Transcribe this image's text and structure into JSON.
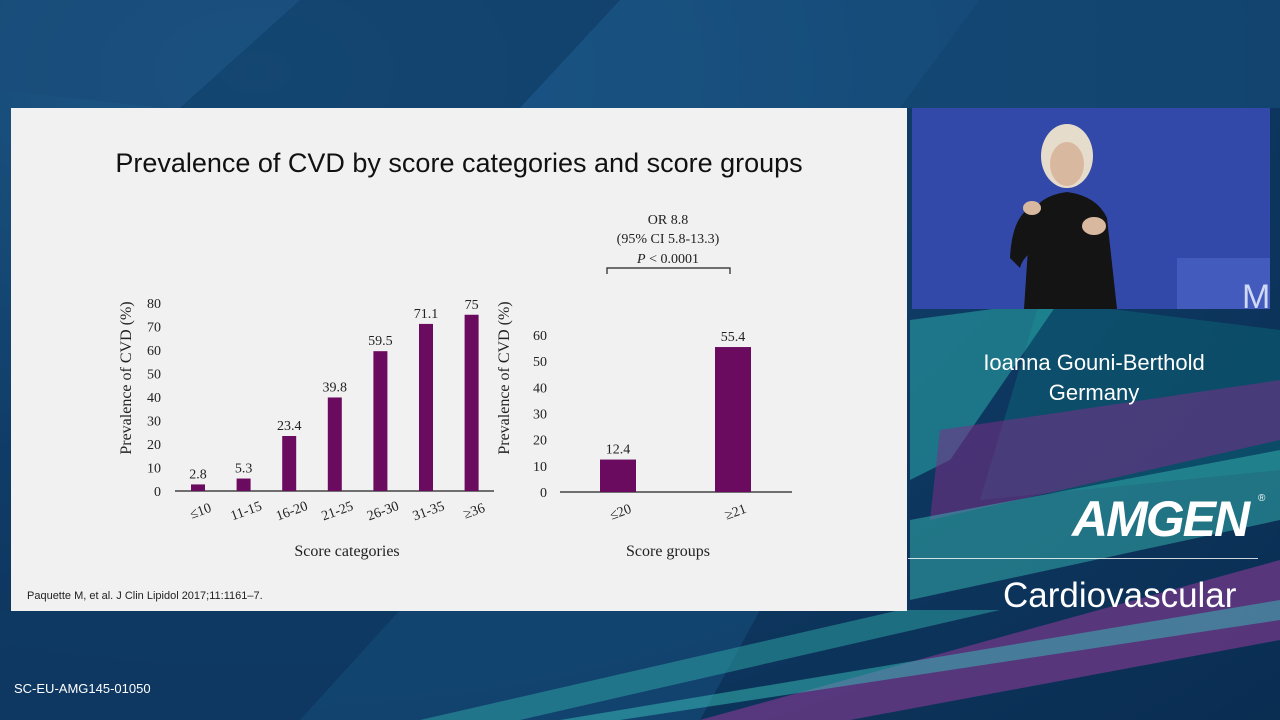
{
  "slide": {
    "title": "Prevalence of CVD by score categories and score groups",
    "citation": "Paquette M, et al. J Clin Lipidol  2017;11:1161–7."
  },
  "chart_data": [
    {
      "type": "bar",
      "ylabel": "Prevalence of CVD (%)",
      "xlabel": "Score categories",
      "categories": [
        "≤10",
        "11-15",
        "16-20",
        "21-25",
        "26-30",
        "31-35",
        "≥36"
      ],
      "values": [
        2.8,
        5.3,
        23.4,
        39.8,
        59.5,
        71.1,
        75
      ],
      "data_labels": [
        "2.8",
        "5.3",
        "23.4",
        "39.8",
        "59.5",
        "71.1",
        "75"
      ],
      "ylim": [
        0,
        80
      ],
      "yticks": [
        0,
        10,
        20,
        30,
        40,
        50,
        60,
        70,
        80
      ],
      "bar_color": "#6b0b5f",
      "grid": false
    },
    {
      "type": "bar",
      "ylabel": "Prevalence of CVD (%)",
      "xlabel": "Score groups",
      "categories": [
        "≤20",
        "≥21"
      ],
      "values": [
        12.4,
        55.4
      ],
      "data_labels": [
        "12.4",
        "55.4"
      ],
      "ylim": [
        0,
        60
      ],
      "yticks": [
        0,
        10,
        20,
        30,
        40,
        50,
        60
      ],
      "bar_color": "#6b0b5f",
      "grid": false,
      "annotation": {
        "line1": "OR 8.8",
        "line2": "(95% CI 5.8-13.3)",
        "p_symbol": "P",
        "p_value": " < 0.0001"
      }
    }
  ],
  "speaker": {
    "name": "Ioanna Gouni-Berthold",
    "country": "Germany"
  },
  "branding": {
    "logo_text": "AMGEN",
    "registered": "®",
    "division": "Cardiovascular"
  },
  "footer": {
    "code": "SC-EU-AMG145-01050"
  },
  "colors": {
    "bar": "#6b0b5f",
    "slide_bg": "#f1f1f1",
    "video_bg": "#3347a8"
  }
}
